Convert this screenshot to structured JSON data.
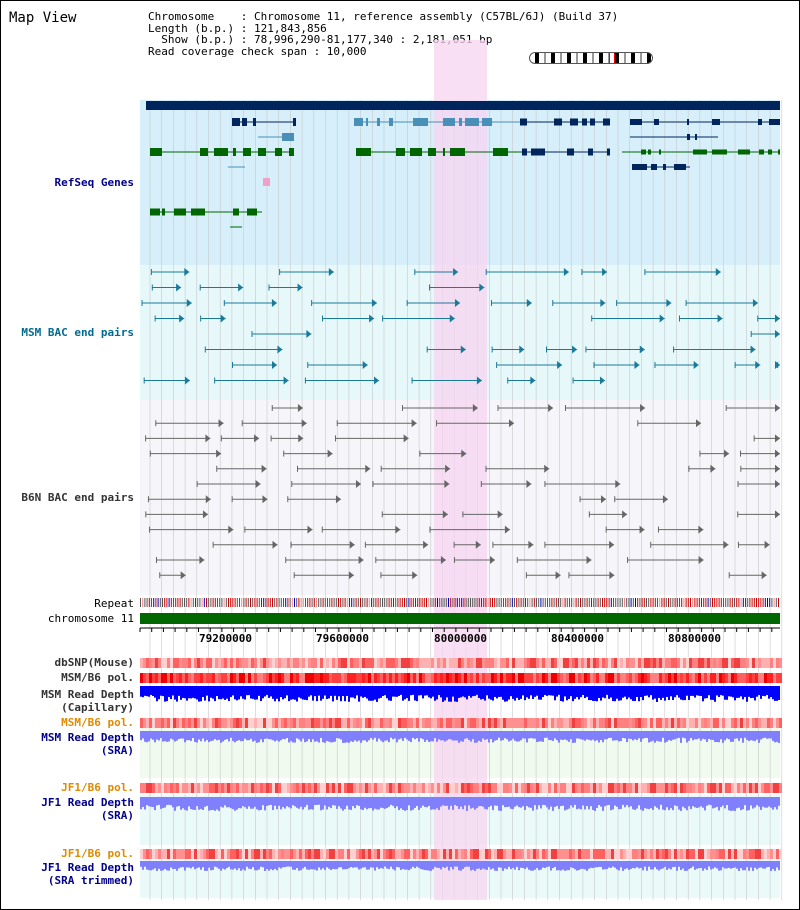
{
  "header": {
    "title": "Map View",
    "info": [
      "Chromosome    : Chromosome 11, reference assembly (C57BL/6J) (Build 37)",
      "Length (b.p.) : 121,843,856",
      "  Show (b.p.) : 78,996,290-81,177,340 : 2,181,051 bp",
      "Read coverage check span : 10,000"
    ]
  },
  "tracks": {
    "refseq": "RefSeq Genes",
    "msm_bac": "MSM BAC end pairs",
    "b6n_bac": "B6N BAC end pairs",
    "repeat": "Repeat",
    "chromosome": "chromosome 11",
    "dbsnp": "dbSNP(Mouse)",
    "msm_b6_pol_1": "MSM/B6 pol.",
    "msm_read_depth_cap": "MSM Read Depth",
    "msm_read_depth_cap_sub": "(Capillary)",
    "msm_b6_pol_2": "MSM/B6 pol.",
    "msm_read_depth_sra": "MSM Read Depth",
    "msm_read_depth_sra_sub": "(SRA)",
    "jf1_b6_pol_1": "JF1/B6 pol.",
    "jf1_read_depth_sra": "JF1 Read Depth",
    "jf1_read_depth_sra_sub": "(SRA)",
    "jf1_b6_pol_2": "JF1/B6 pol.",
    "jf1_read_depth_trim": "JF1 Read Depth",
    "jf1_read_depth_trim_sub": "(SRA trimmed)"
  },
  "axis": {
    "ticks": [
      "79200000",
      "79600000",
      "80000000",
      "80400000",
      "80800000"
    ]
  },
  "colors": {
    "refseq_bg": "#d6effa",
    "msm_bg": "#e6f8fa",
    "b6n_bg": "#f6f6fa",
    "highlight": "#f7d4f0",
    "gene_navy": "#00245c",
    "gene_blue": "#4a8fb8",
    "gene_green": "#006600",
    "chromosome": "#006600",
    "depth_blue": "#0000ff",
    "depth_lavender": "#8080ff"
  }
}
